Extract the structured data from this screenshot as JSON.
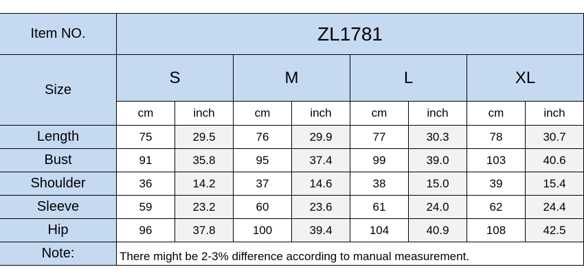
{
  "header": {
    "item_label": "Item NO.",
    "item_no": "ZL1781",
    "size_label": "Size",
    "sizes": [
      "S",
      "M",
      "L",
      "XL"
    ],
    "units": [
      "cm",
      "inch",
      "cm",
      "inch",
      "cm",
      "inch",
      "cm",
      "inch"
    ]
  },
  "table": {
    "rows": [
      {
        "label": "Length",
        "values": [
          "75",
          "29.5",
          "76",
          "29.9",
          "77",
          "30.3",
          "78",
          "30.7"
        ]
      },
      {
        "label": "Bust",
        "values": [
          "91",
          "35.8",
          "95",
          "37.4",
          "99",
          "39.0",
          "103",
          "40.6"
        ]
      },
      {
        "label": "Shoulder",
        "values": [
          "36",
          "14.2",
          "37",
          "14.6",
          "38",
          "15.0",
          "39",
          "15.4"
        ]
      },
      {
        "label": "Sleeve",
        "values": [
          "59",
          "23.2",
          "60",
          "23.6",
          "61",
          "24.0",
          "62",
          "24.4"
        ]
      },
      {
        "label": "Hip",
        "values": [
          "96",
          "37.8",
          "100",
          "39.4",
          "104",
          "40.9",
          "108",
          "42.5"
        ]
      }
    ]
  },
  "note": {
    "label": "Note:",
    "text": "There might be 2-3% difference according to manual measurement."
  }
}
